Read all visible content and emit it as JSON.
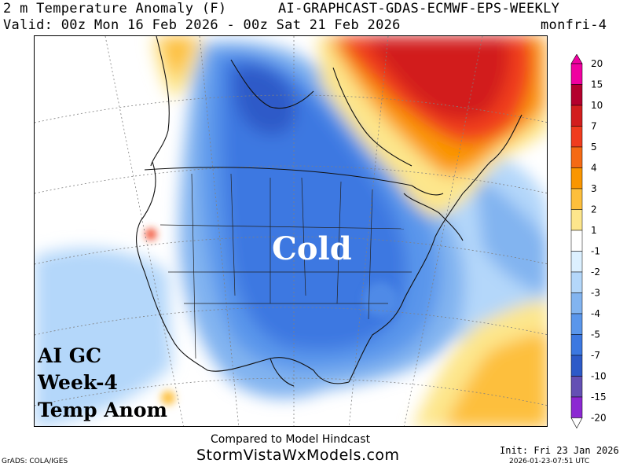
{
  "header": {
    "title": "2 m Temperature Anomaly (F)",
    "model": "AI-GRAPHCAST-GDAS-ECMWF-EPS-WEEKLY",
    "valid": "Valid: 00z Mon 16 Feb 2026 - 00z Sat 21 Feb 2026",
    "run_tag": "monfri-4"
  },
  "overlay": {
    "center_label": "Cold",
    "corner_lines": [
      "AI GC",
      "Week-4",
      "Temp Anom"
    ]
  },
  "legend": {
    "levels": [
      {
        "label": "20",
        "color": "#f000a0"
      },
      {
        "label": "15",
        "color": "#b4002d"
      },
      {
        "label": "10",
        "color": "#d21e1e"
      },
      {
        "label": "7",
        "color": "#f03c1e"
      },
      {
        "label": "5",
        "color": "#f56a14"
      },
      {
        "label": "4",
        "color": "#fa9600"
      },
      {
        "label": "3",
        "color": "#fdbf3c"
      },
      {
        "label": "2",
        "color": "#fde68c"
      },
      {
        "label": "1",
        "color": "#ffffff"
      },
      {
        "label": "-1",
        "color": "#dcf0ff"
      },
      {
        "label": "-2",
        "color": "#b4d7fa"
      },
      {
        "label": "-3",
        "color": "#82b4f0"
      },
      {
        "label": "-4",
        "color": "#5a96eb"
      },
      {
        "label": "-5",
        "color": "#3c78e1"
      },
      {
        "label": "-7",
        "color": "#2d5ac8"
      },
      {
        "label": "-10",
        "color": "#6450b4"
      },
      {
        "label": "-15",
        "color": "#8c28d2"
      },
      {
        "label": "-20",
        "color": "#ffffff"
      }
    ]
  },
  "footer": {
    "compare": "Compared to Model Hindcast",
    "site": "StormVistaWxModels.com",
    "grads": "GrADS: COLA/IGES",
    "init": "Init: Fri 23 Jan 2026",
    "timestamp": "2026-01-23-07:51 UTC"
  }
}
